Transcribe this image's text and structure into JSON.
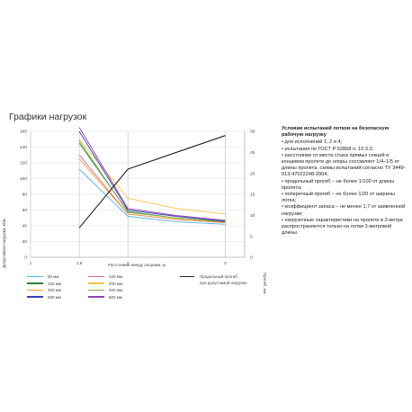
{
  "page_title": "Графики нагрузок",
  "conditions": {
    "title": "Условия испытаний лотков на безопасную рабочую нагрузку",
    "items": [
      "• для исполнений 1, 2 и 4;",
      "• испытания по ГОСТ Р 52868 п. 10.3.3;",
      "• расстояние от места стыка прямых секций в концевом пролете до опоры составляет 1/4–1/5 от длины пролета, схемы испытаний согласно ТУ 3449-013-47022248-2004;",
      "• продольный прогиб – не более 1/100 от длины пролета;",
      "• поперечный прогиб – не более 1/20 от ширины лотка;",
      "• коэффициент запаса – не менее 1,7 от заявленной нагрузки;",
      "• нагрузочные характеристики на пролете в 3 метра распространяются только на лотки 3-метровой длины."
    ]
  },
  "chart_data": {
    "type": "line",
    "x": [
      1.5,
      2,
      2.5,
      3
    ],
    "xlim": [
      1,
      3.2
    ],
    "x_ticks": [
      "1",
      "1.5",
      "2",
      "3"
    ],
    "xlabel": "Расстояние между опорами, м",
    "ylabel": "Допустимая нагрузка, кг/м",
    "ylim": [
      0,
      160
    ],
    "y_ticks": [
      "0",
      "20",
      "40",
      "60",
      "80",
      "100",
      "120",
      "140",
      "160"
    ],
    "y2label": "Прогиб, мм",
    "y2lim": [
      0,
      30
    ],
    "y2_ticks": [
      "0",
      "5",
      "10",
      "15",
      "20",
      "25",
      "30"
    ],
    "grid": true,
    "series": [
      {
        "name": "50 мм",
        "color": "#4fb3e8",
        "values": [
          112,
          52,
          45,
          42
        ]
      },
      {
        "name": "100 мм",
        "color": "#e06b8e",
        "values": [
          130,
          55,
          48,
          44
        ]
      },
      {
        "name": "150 мм",
        "color": "#2e7d32",
        "values": [
          145,
          58,
          50,
          45
        ]
      },
      {
        "name": "200 мм",
        "color": "#f4c542",
        "values": [
          150,
          75,
          62,
          55
        ]
      },
      {
        "name": "300 мм",
        "color": "#f29a3a",
        "values": [
          125,
          55,
          48,
          44
        ]
      },
      {
        "name": "400 мм",
        "color": "#7cb342",
        "values": [
          148,
          57,
          50,
          46
        ]
      },
      {
        "name": "500 мм",
        "color": "#3b3fb8",
        "values": [
          160,
          60,
          52,
          46
        ]
      },
      {
        "name": "600 мм",
        "color": "#8e44ad",
        "values": [
          165,
          62,
          53,
          47
        ]
      },
      {
        "name": "Продольный прогиб при допустимой нагрузке",
        "color": "#222222",
        "axis": "right",
        "values": [
          7,
          21,
          25,
          29
        ]
      }
    ],
    "legend_deflection_lines": [
      "Продольный прогиб",
      "при допустимой нагрузке"
    ]
  }
}
